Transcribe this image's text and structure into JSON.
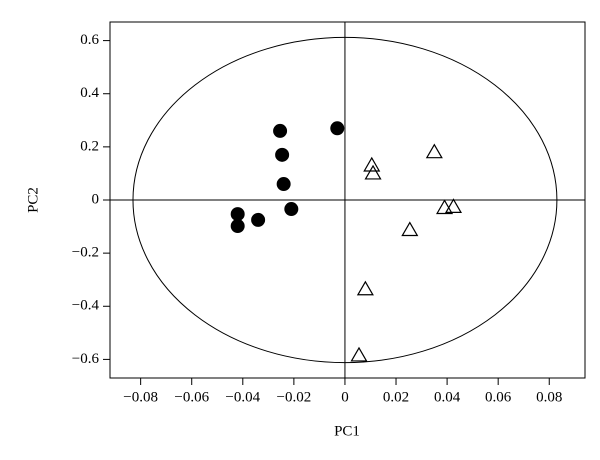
{
  "chart_data": {
    "type": "scatter",
    "xlabel": "PC1",
    "ylabel": "PC2",
    "xlim": [
      -0.092,
      0.094
    ],
    "ylim": [
      -0.67,
      0.67
    ],
    "xticks": [
      {
        "value": -0.08,
        "label": "−0.08"
      },
      {
        "value": -0.06,
        "label": "−0.06"
      },
      {
        "value": -0.04,
        "label": "−0.04"
      },
      {
        "value": -0.02,
        "label": "−0.02"
      },
      0,
      0.02,
      0.04,
      0.06,
      0.08
    ],
    "yticks": [
      {
        "value": -0.6,
        "label": "−0.6"
      },
      {
        "value": -0.4,
        "label": "−0.4"
      },
      {
        "value": -0.2,
        "label": "−0.2"
      },
      0,
      0.2,
      0.4,
      0.6
    ],
    "ellipse": {
      "cx": 0,
      "cy": 0,
      "rx": 0.083,
      "ry": 0.612
    },
    "series": [
      {
        "marker": "circle",
        "color": "#000000",
        "filled": true,
        "x": [
          -0.0254,
          -0.003,
          -0.0246,
          -0.024,
          -0.021,
          -0.042,
          -0.042,
          -0.034
        ],
        "values": [
          0.26,
          0.27,
          0.17,
          0.06,
          -0.034,
          -0.053,
          -0.098,
          -0.075
        ]
      },
      {
        "marker": "triangle",
        "color": "#000000",
        "filled": false,
        "x": [
          0.0105,
          0.011,
          0.035,
          0.039,
          0.0425,
          0.0254,
          0.008,
          0.0055
        ],
        "values": [
          0.13,
          0.1,
          0.18,
          -0.03,
          -0.026,
          -0.113,
          -0.336,
          -0.585
        ]
      }
    ]
  }
}
